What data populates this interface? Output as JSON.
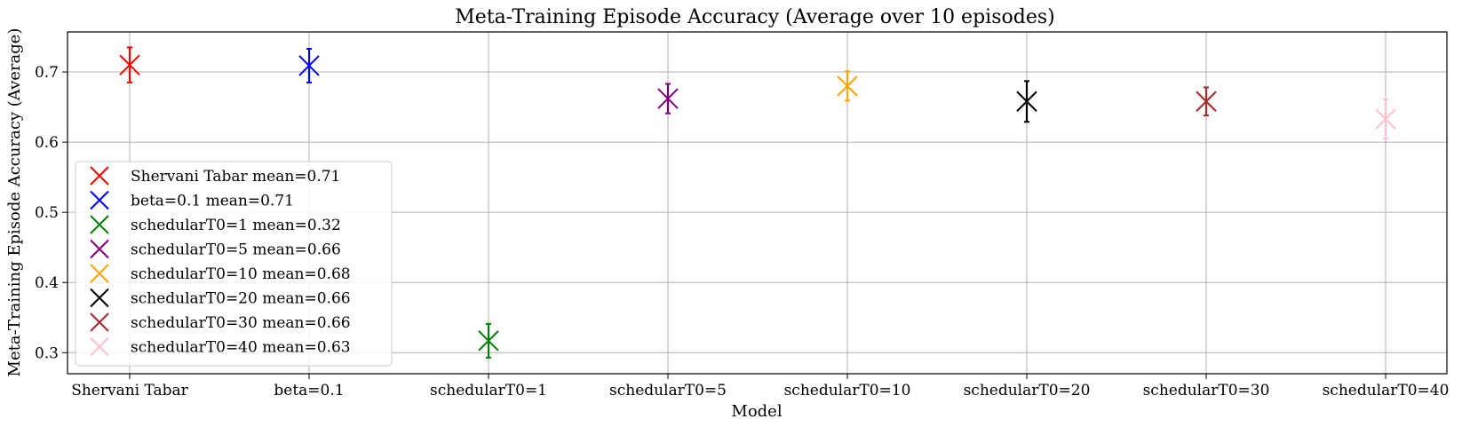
{
  "chart_data": {
    "type": "scatter",
    "title": "Meta-Training Episode Accuracy (Average over 10 episodes)",
    "xlabel": "Model",
    "ylabel": "Meta-Training Episode Accuracy (Average)",
    "categories": [
      "Shervani Tabar",
      "beta=0.1",
      "schedularT0=1",
      "schedularT0=5",
      "schedularT0=10",
      "schedularT0=20",
      "schedularT0=30",
      "schedularT0=40"
    ],
    "yticks": [
      "0.3",
      "0.4",
      "0.5",
      "0.6",
      "0.7"
    ],
    "ytick_values": [
      0.3,
      0.4,
      0.5,
      0.6,
      0.7
    ],
    "ylim": [
      0.27,
      0.757
    ],
    "grid": true,
    "marker": "x",
    "legend_position": "lower-left",
    "series": [
      {
        "name": "Shervani Tabar mean=0.71",
        "color": "#ff0000",
        "mean": 0.71,
        "err": 0.025
      },
      {
        "name": "beta=0.1 mean=0.71",
        "color": "#0000ff",
        "mean": 0.709,
        "err": 0.024
      },
      {
        "name": "schedularT0=1 mean=0.32",
        "color": "#008000",
        "mean": 0.317,
        "err": 0.024
      },
      {
        "name": "schedularT0=5 mean=0.66",
        "color": "#800080",
        "mean": 0.662,
        "err": 0.021
      },
      {
        "name": "schedularT0=10 mean=0.68",
        "color": "#ffa500",
        "mean": 0.68,
        "err": 0.021
      },
      {
        "name": "schedularT0=20 mean=0.66",
        "color": "#000000",
        "mean": 0.658,
        "err": 0.029
      },
      {
        "name": "schedularT0=30 mean=0.66",
        "color": "#a52a2a",
        "mean": 0.658,
        "err": 0.02
      },
      {
        "name": "schedularT0=40 mean=0.63",
        "color": "#ffc0cb",
        "mean": 0.633,
        "err": 0.028
      }
    ]
  }
}
